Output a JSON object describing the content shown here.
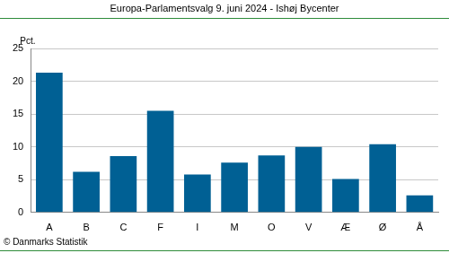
{
  "chart_data": {
    "type": "bar",
    "title": "Europa-Parlamentsvalg 9. juni 2024 - Ishøj Bycenter",
    "ylabel": "Pct.",
    "source": "© Danmarks Statistik",
    "categories": [
      "A",
      "B",
      "C",
      "F",
      "I",
      "M",
      "O",
      "V",
      "Æ",
      "Ø",
      "Å"
    ],
    "values": [
      21.3,
      6.2,
      8.6,
      15.5,
      5.8,
      7.6,
      8.7,
      10.0,
      5.1,
      10.4,
      2.6
    ],
    "color": "#006094",
    "ylim": [
      0,
      25
    ],
    "yticks": [
      0,
      5,
      10,
      15,
      20,
      25
    ],
    "grid": true
  }
}
